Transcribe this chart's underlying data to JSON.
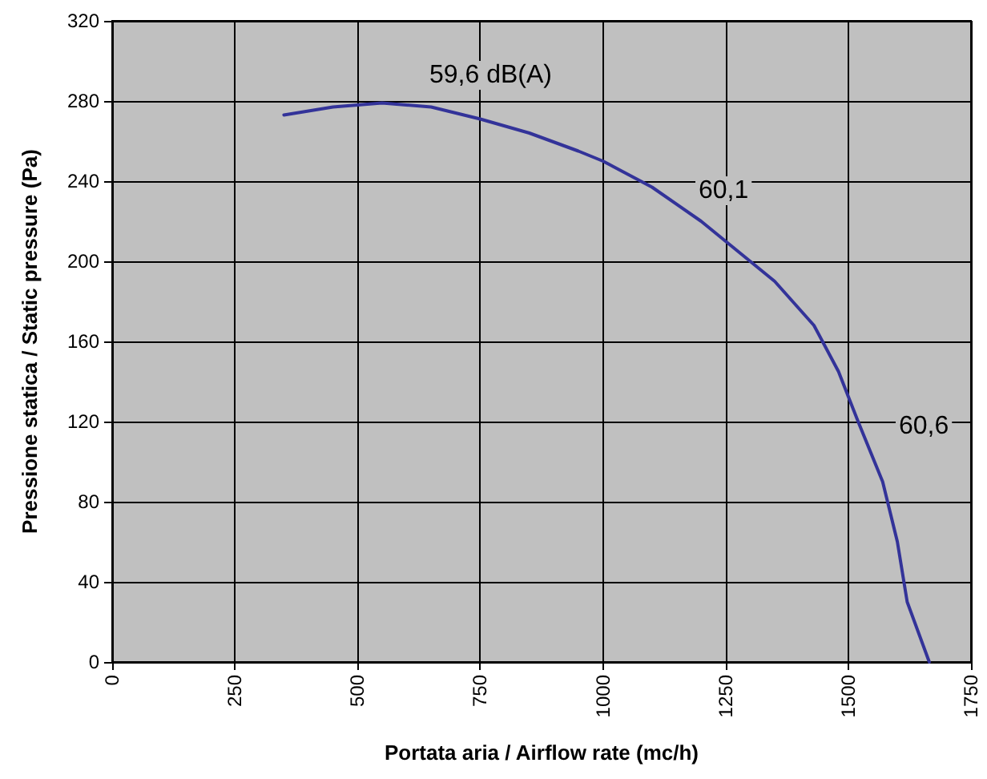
{
  "chart_data": {
    "type": "line",
    "xlabel": "Portata aria / Airflow rate (mc/h)",
    "ylabel": "Pressione statica / Static pressure (Pa)",
    "x": [
      350,
      450,
      550,
      650,
      750,
      850,
      950,
      1000,
      1100,
      1200,
      1250,
      1350,
      1430,
      1480,
      1520,
      1570,
      1600,
      1620,
      1665
    ],
    "series": [
      {
        "color": "#333399",
        "values": [
          273,
          277,
          279,
          277,
          271,
          264,
          255,
          250,
          237,
          220,
          210,
          190,
          168,
          145,
          120,
          90,
          60,
          30,
          0
        ]
      }
    ],
    "xlim": [
      0,
      1750
    ],
    "xticks": [
      0,
      250,
      500,
      750,
      1000,
      1250,
      1500,
      1750
    ],
    "ylim": [
      0,
      320
    ],
    "yticks": [
      0,
      40,
      80,
      120,
      160,
      200,
      240,
      280,
      320
    ],
    "grid": true,
    "marker": "none",
    "line_style": "solid",
    "annotations": [
      "59,6 dB(A)",
      "60,1",
      "60,6"
    ]
  }
}
